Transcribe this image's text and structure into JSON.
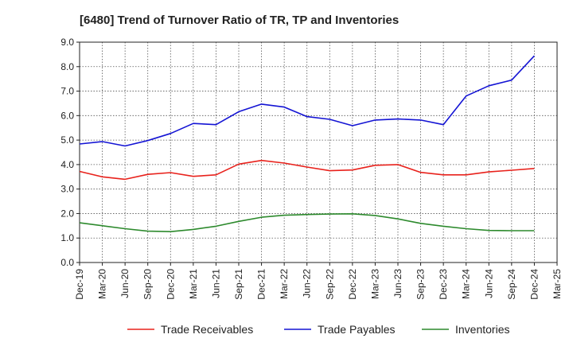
{
  "chart_data": {
    "type": "line",
    "title": "[6480]  Trend of Turnover Ratio of TR, TP and Inventories",
    "xlabel": "",
    "ylabel": "",
    "ylim": [
      0,
      9
    ],
    "yticks": [
      "0.0",
      "1.0",
      "2.0",
      "3.0",
      "4.0",
      "5.0",
      "6.0",
      "7.0",
      "8.0",
      "9.0"
    ],
    "x": [
      "Dec-19",
      "Mar-20",
      "Jun-20",
      "Sep-20",
      "Dec-20",
      "Mar-21",
      "Jun-21",
      "Sep-21",
      "Dec-21",
      "Mar-22",
      "Jun-22",
      "Sep-22",
      "Dec-22",
      "Mar-23",
      "Jun-23",
      "Sep-23",
      "Dec-23",
      "Mar-24",
      "Jun-24",
      "Sep-24",
      "Dec-24",
      "Mar-25"
    ],
    "grid": true,
    "legend_position": "bottom",
    "series": [
      {
        "name": "Trade Receivables",
        "color": "#e8221c",
        "values": [
          3.72,
          3.5,
          3.4,
          3.6,
          3.67,
          3.52,
          3.58,
          4.02,
          4.17,
          4.06,
          3.9,
          3.75,
          3.78,
          3.97,
          4.0,
          3.68,
          3.58,
          3.58,
          3.7,
          3.77,
          3.84,
          null
        ]
      },
      {
        "name": "Trade Payables",
        "color": "#1414d4",
        "values": [
          4.84,
          4.94,
          4.76,
          4.98,
          5.27,
          5.68,
          5.63,
          6.16,
          6.47,
          6.35,
          5.96,
          5.85,
          5.59,
          5.82,
          5.86,
          5.82,
          5.63,
          6.8,
          7.22,
          7.45,
          8.44,
          null
        ]
      },
      {
        "name": "Inventories",
        "color": "#2d8a2d",
        "values": [
          1.62,
          1.5,
          1.38,
          1.28,
          1.26,
          1.35,
          1.48,
          1.68,
          1.85,
          1.93,
          1.96,
          1.98,
          1.99,
          1.92,
          1.78,
          1.6,
          1.48,
          1.38,
          1.31,
          1.3,
          1.3,
          null
        ]
      }
    ]
  }
}
